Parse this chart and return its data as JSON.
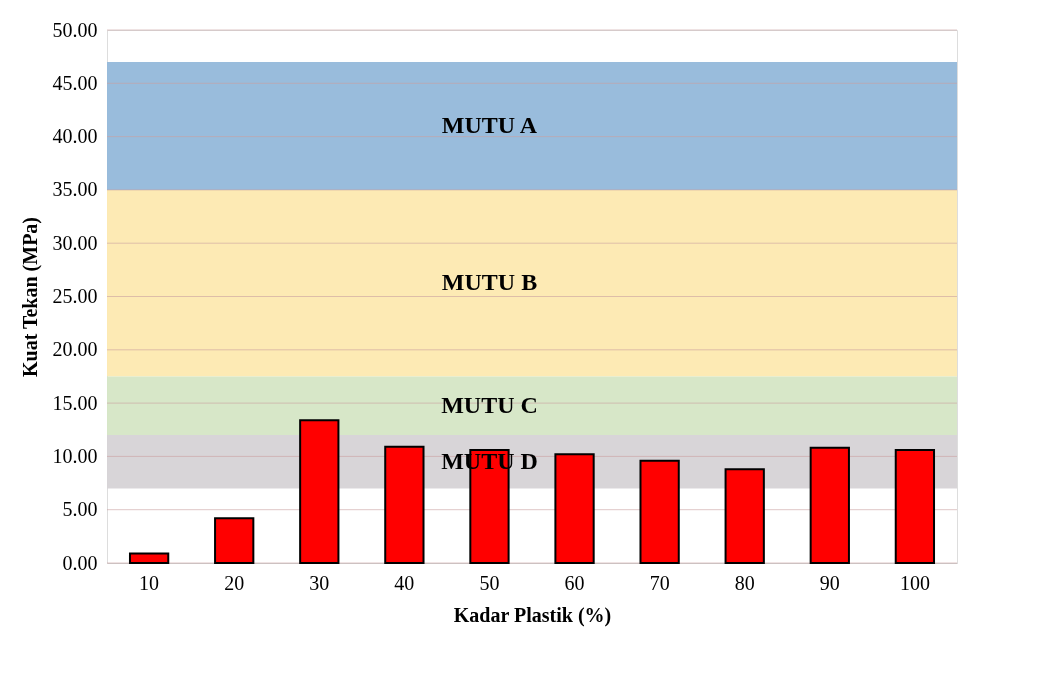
{
  "chart_data": {
    "type": "bar",
    "xlabel": "Kadar Plastik (%)",
    "ylabel": "Kuat Tekan (MPa)",
    "categories": [
      "10",
      "20",
      "30",
      "40",
      "50",
      "60",
      "70",
      "80",
      "90",
      "100"
    ],
    "series": [
      {
        "color": "#ff0000",
        "values": [
          0.9,
          4.2,
          13.4,
          10.9,
          10.6,
          10.2,
          9.6,
          8.8,
          10.8,
          10.6
        ]
      }
    ],
    "ylim": [
      0,
      50
    ],
    "yticks": [
      {
        "value": 0,
        "label": "0.00"
      },
      {
        "value": 5,
        "label": "5.00"
      },
      {
        "value": 10,
        "label": "10.00"
      },
      {
        "value": 15,
        "label": "15.00"
      },
      {
        "value": 20,
        "label": "20.00"
      },
      {
        "value": 25,
        "label": "25.00"
      },
      {
        "value": 30,
        "label": "30.00"
      },
      {
        "value": 35,
        "label": "35.00"
      },
      {
        "value": 40,
        "label": "40.00"
      },
      {
        "value": 45,
        "label": "45.00"
      },
      {
        "value": 50,
        "label": "50.00"
      }
    ],
    "bands": [
      {
        "axis": "y",
        "from": 35,
        "to": 47,
        "label": "MUTU A",
        "color": "#94b8da"
      },
      {
        "axis": "y",
        "from": 17.5,
        "to": 35,
        "label": "MUTU B",
        "color": "#fde9b0"
      },
      {
        "axis": "y",
        "from": 12,
        "to": 17.5,
        "label": "MUTU C",
        "color": "#d5e6c5"
      },
      {
        "axis": "y",
        "from": 7,
        "to": 12,
        "label": "MUTU D",
        "color": "#d6d3d6"
      }
    ],
    "grid": "y"
  }
}
